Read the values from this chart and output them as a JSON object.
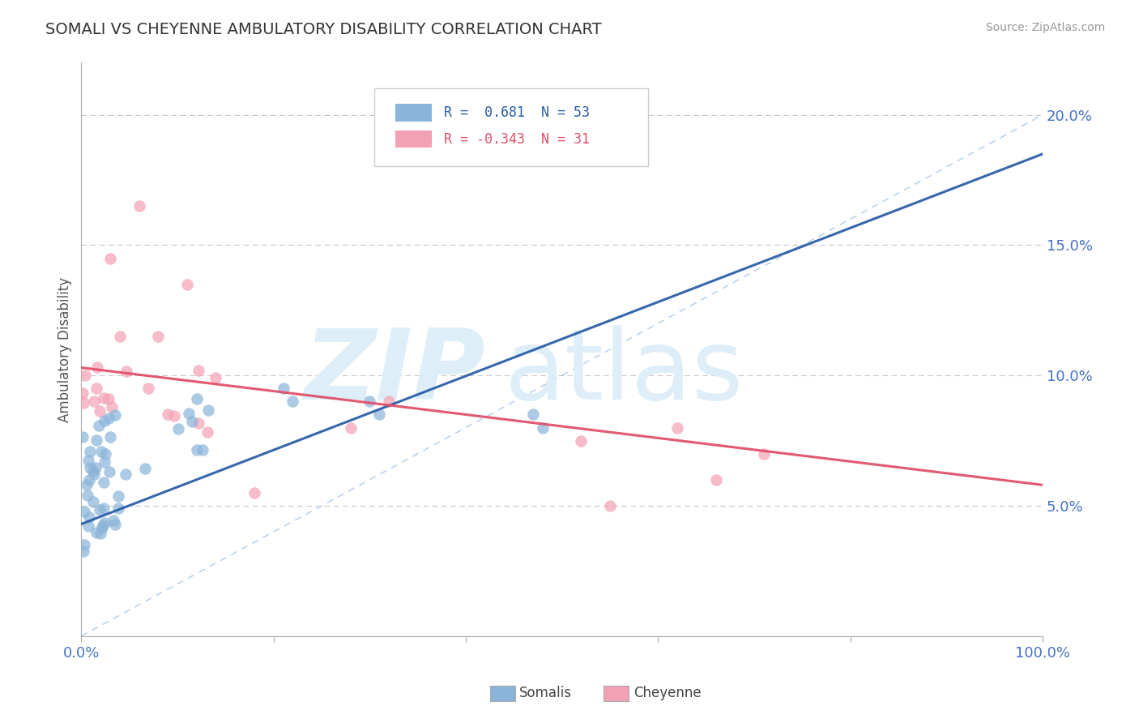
{
  "title": "SOMALI VS CHEYENNE AMBULATORY DISABILITY CORRELATION CHART",
  "source": "Source: ZipAtlas.com",
  "tick_color": "#4472c4",
  "ylabel": "Ambulatory Disability",
  "xlim": [
    0,
    1.0
  ],
  "ylim": [
    0,
    0.22
  ],
  "x_ticks": [
    0.0,
    0.2,
    0.4,
    0.6,
    0.8,
    1.0
  ],
  "x_tick_labels": [
    "0.0%",
    "",
    "",
    "",
    "",
    "100.0%"
  ],
  "y_ticks": [
    0.05,
    0.1,
    0.15,
    0.2
  ],
  "y_tick_labels": [
    "5.0%",
    "10.0%",
    "15.0%",
    "20.0%"
  ],
  "somali_color": "#8ab4d9",
  "cheyenne_color": "#f4a0b4",
  "somali_trend_color": "#2b5fa8",
  "cheyenne_trend_color": "#e0506a",
  "diagonal_color": "#aac8e8",
  "legend_label1": "Somalis",
  "legend_label2": "Cheyenne",
  "background_color": "#ffffff",
  "grid_color": "#c8c8c8",
  "watermark_zip": "ZIP",
  "watermark_atlas": "atlas",
  "watermark_color": "#ddeef8",
  "somali_trend_x0": 0.0,
  "somali_trend_y0": 0.043,
  "somali_trend_x1": 1.0,
  "somali_trend_y1": 0.185,
  "cheyenne_trend_x0": 0.0,
  "cheyenne_trend_y0": 0.103,
  "cheyenne_trend_x1": 1.0,
  "cheyenne_trend_y1": 0.058
}
